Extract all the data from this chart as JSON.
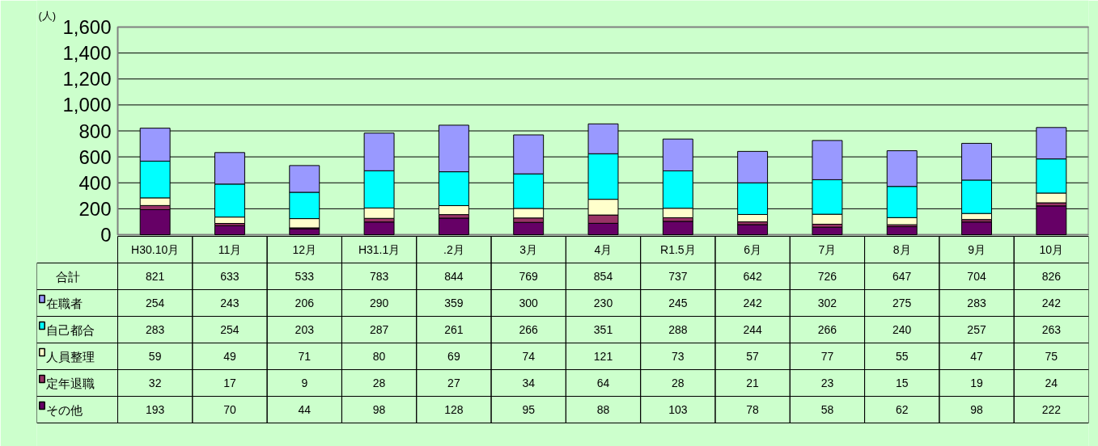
{
  "chart_data": {
    "type": "bar",
    "stacked": true,
    "ylabel": "(人)",
    "categories": [
      "H30.10月",
      "11月",
      "12月",
      "H31.1月",
      ".2月",
      "3月",
      "4月",
      "R1.5月",
      "6月",
      "7月",
      "8月",
      "9月",
      "10月"
    ],
    "series": [
      {
        "name": "その他",
        "color": "#660066",
        "values": [
          193,
          70,
          44,
          98,
          128,
          95,
          88,
          103,
          78,
          58,
          62,
          98,
          222
        ]
      },
      {
        "name": "定年退職",
        "color": "#993366",
        "values": [
          32,
          17,
          9,
          28,
          27,
          34,
          64,
          28,
          21,
          23,
          15,
          19,
          24
        ]
      },
      {
        "name": "人員整理",
        "color": "#ffffcc",
        "values": [
          59,
          49,
          71,
          80,
          69,
          74,
          121,
          73,
          57,
          77,
          55,
          47,
          75
        ]
      },
      {
        "name": "自己都合",
        "color": "#00ffff",
        "values": [
          283,
          254,
          203,
          287,
          261,
          266,
          351,
          288,
          244,
          266,
          240,
          257,
          263
        ]
      },
      {
        "name": "在職者",
        "color": "#9999ff",
        "values": [
          254,
          243,
          206,
          290,
          359,
          300,
          230,
          245,
          242,
          302,
          275,
          283,
          242
        ]
      }
    ],
    "annotations": [
      "合計"
    ],
    "totals": [
      "821",
      "633",
      "533",
      "783",
      "844",
      "769",
      "854",
      "737",
      "642",
      "726",
      "647",
      "704",
      "826"
    ],
    "data_labels": true,
    "ylim": [
      0,
      1600
    ],
    "yticks": [
      0,
      200,
      400,
      600,
      800,
      {
        "value": 1000,
        "label": "1,000"
      },
      {
        "value": 1200,
        "label": "1,200"
      },
      {
        "value": 1400,
        "label": "1,400"
      },
      {
        "value": 1600,
        "label": "1,600"
      }
    ],
    "grid": "y",
    "legend": "bottom"
  }
}
